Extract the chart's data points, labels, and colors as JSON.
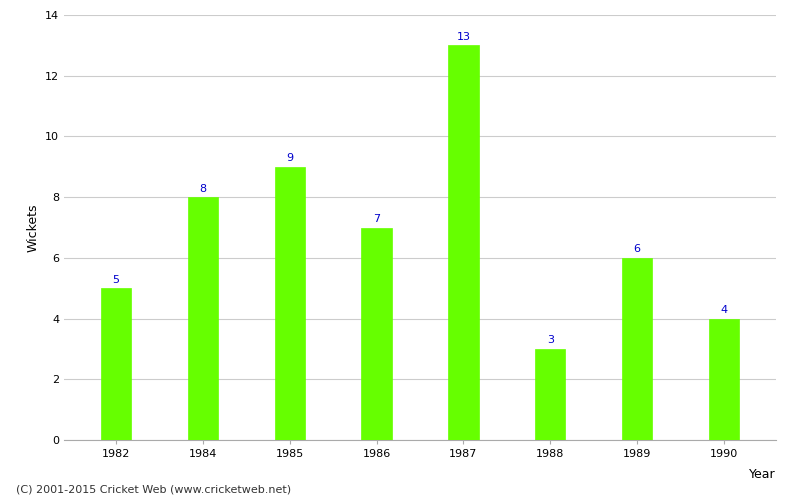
{
  "years": [
    "1982",
    "1984",
    "1985",
    "1986",
    "1987",
    "1988",
    "1989",
    "1990"
  ],
  "wickets": [
    5,
    8,
    9,
    7,
    13,
    3,
    6,
    4
  ],
  "bar_color": "#66ff00",
  "bar_edge_color": "#66ff00",
  "annotation_color": "#0000cc",
  "xlabel": "Year",
  "ylabel": "Wickets",
  "ylim": [
    0,
    14
  ],
  "yticks": [
    0,
    2,
    4,
    6,
    8,
    10,
    12,
    14
  ],
  "grid_color": "#cccccc",
  "background_color": "#ffffff",
  "annotation_fontsize": 8,
  "axis_label_fontsize": 9,
  "tick_fontsize": 8,
  "bar_width": 0.35,
  "footer_text": "(C) 2001-2015 Cricket Web (www.cricketweb.net)",
  "footer_fontsize": 8
}
